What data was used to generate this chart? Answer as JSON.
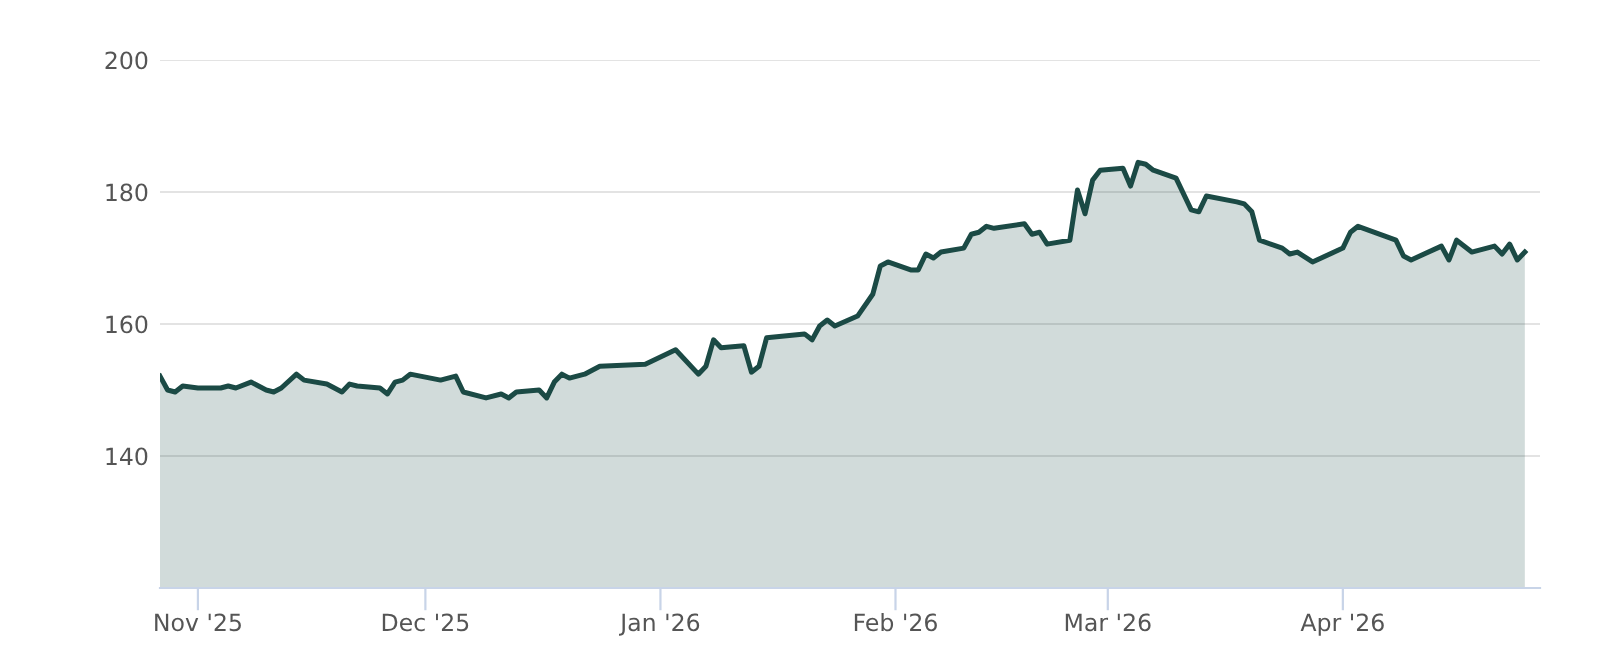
{
  "chart_data": {
    "type": "area",
    "x": [
      "2025-10-27",
      "2025-10-28",
      "2025-10-29",
      "2025-10-30",
      "2025-11-01",
      "2025-11-04",
      "2025-11-05",
      "2025-11-06",
      "2025-11-08",
      "2025-11-10",
      "2025-11-11",
      "2025-11-12",
      "2025-11-14",
      "2025-11-15",
      "2025-11-18",
      "2025-11-20",
      "2025-11-21",
      "2025-11-22",
      "2025-11-25",
      "2025-11-26",
      "2025-11-27",
      "2025-11-28",
      "2025-11-29",
      "2025-12-03",
      "2025-12-05",
      "2025-12-06",
      "2025-12-09",
      "2025-12-11",
      "2025-12-12",
      "2025-12-13",
      "2025-12-16",
      "2025-12-17",
      "2025-12-18",
      "2025-12-19",
      "2025-12-20",
      "2025-12-22",
      "2025-12-24",
      "2025-12-30",
      "2026-01-03",
      "2026-01-06",
      "2026-01-07",
      "2026-01-08",
      "2026-01-09",
      "2026-01-12",
      "2026-01-13",
      "2026-01-14",
      "2026-01-15",
      "2026-01-20",
      "2026-01-21",
      "2026-01-22",
      "2026-01-23",
      "2026-01-24",
      "2026-01-27",
      "2026-01-29",
      "2026-01-30",
      "2026-01-31",
      "2026-02-03",
      "2026-02-04",
      "2026-02-05",
      "2026-02-06",
      "2026-02-07",
      "2026-02-10",
      "2026-02-11",
      "2026-02-12",
      "2026-02-13",
      "2026-02-14",
      "2026-02-18",
      "2026-02-19",
      "2026-02-20",
      "2026-02-21",
      "2026-02-24",
      "2026-02-25",
      "2026-02-26",
      "2026-02-27",
      "2026-02-28",
      "2026-03-03",
      "2026-03-04",
      "2026-03-05",
      "2026-03-06",
      "2026-03-07",
      "2026-03-10",
      "2026-03-12",
      "2026-03-13",
      "2026-03-14",
      "2026-03-18",
      "2026-03-19",
      "2026-03-20",
      "2026-03-21",
      "2026-03-24",
      "2026-03-25",
      "2026-03-26",
      "2026-03-28",
      "2026-04-01",
      "2026-04-02",
      "2026-04-03",
      "2026-04-08",
      "2026-04-09",
      "2026-04-10",
      "2026-04-14",
      "2026-04-15",
      "2026-04-16",
      "2026-04-18",
      "2026-04-21",
      "2026-04-22",
      "2026-04-23",
      "2026-04-24",
      "2026-04-25"
    ],
    "series": [
      {
        "color": "#1b4a45",
        "values": [
          152.1,
          150.0,
          149.7,
          150.6,
          150.3,
          150.3,
          150.6,
          150.3,
          151.2,
          150.0,
          149.7,
          150.3,
          152.4,
          151.5,
          150.9,
          149.7,
          150.9,
          150.6,
          150.3,
          149.4,
          151.2,
          151.5,
          152.4,
          151.5,
          152.1,
          149.7,
          148.8,
          149.4,
          148.8,
          149.7,
          150.0,
          148.8,
          151.2,
          152.4,
          151.8,
          152.4,
          153.6,
          153.9,
          156.1,
          152.4,
          153.6,
          157.6,
          156.4,
          156.7,
          152.7,
          153.6,
          157.9,
          158.5,
          157.6,
          159.7,
          160.6,
          159.7,
          161.2,
          164.5,
          168.8,
          169.4,
          168.2,
          168.2,
          170.6,
          170.0,
          170.9,
          171.5,
          173.6,
          173.9,
          174.8,
          174.5,
          175.2,
          173.6,
          173.9,
          172.1,
          172.7,
          180.3,
          176.7,
          181.8,
          183.3,
          183.6,
          180.9,
          184.5,
          184.2,
          183.3,
          182.1,
          177.3,
          177.0,
          179.4,
          178.5,
          178.2,
          177.0,
          172.7,
          171.5,
          170.6,
          170.9,
          169.4,
          171.5,
          173.9,
          174.8,
          172.7,
          170.3,
          169.7,
          171.8,
          169.7,
          172.7,
          170.9,
          171.8,
          170.6,
          172.1,
          169.7,
          170.9
        ]
      }
    ],
    "xlim": [
      "2025-10-27",
      "2026-04-27"
    ],
    "xticks": [
      {
        "value": "2025-11-01",
        "label": "Nov '25"
      },
      {
        "value": "2025-12-01",
        "label": "Dec '25"
      },
      {
        "value": "2026-01-01",
        "label": "Jan '26"
      },
      {
        "value": "2026-02-01",
        "label": "Feb '26"
      },
      {
        "value": "2026-03-01",
        "label": "Mar '26"
      },
      {
        "value": "2026-04-01",
        "label": "Apr '26"
      }
    ],
    "ylim": [
      120,
      200
    ],
    "yticks": [
      {
        "value": 120,
        "label": null
      },
      140,
      160,
      180,
      200
    ],
    "grid": "y"
  }
}
